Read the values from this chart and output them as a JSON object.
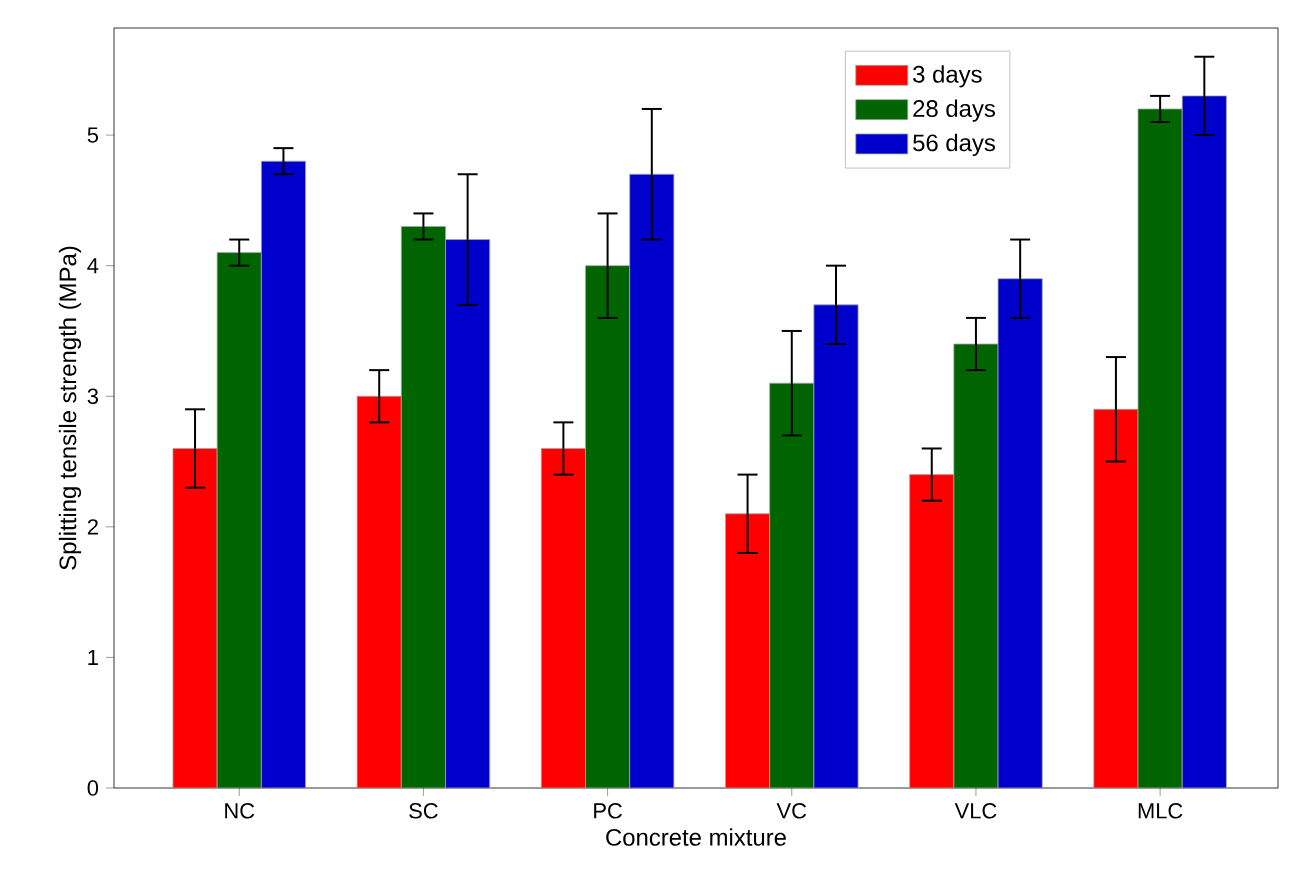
{
  "chart_data": {
    "type": "bar",
    "xlabel": "Concrete mixture",
    "ylabel": "Splitting tensile strength (MPa)",
    "categories": [
      "NC",
      "SC",
      "PC",
      "VC",
      "VLC",
      "MLC"
    ],
    "series": [
      {
        "name": "3 days",
        "color": "#ff0000",
        "values": [
          2.6,
          3.0,
          2.6,
          2.1,
          2.4,
          2.9
        ],
        "errors": [
          0.3,
          0.2,
          0.2,
          0.3,
          0.2,
          0.4
        ]
      },
      {
        "name": "28 days",
        "color": "#006400",
        "values": [
          4.1,
          4.3,
          4.0,
          3.1,
          3.4,
          5.2
        ],
        "errors": [
          0.1,
          0.1,
          0.4,
          0.4,
          0.2,
          0.1
        ]
      },
      {
        "name": "56 days",
        "color": "#0000cd",
        "values": [
          4.8,
          4.2,
          4.7,
          3.7,
          3.9,
          5.3
        ],
        "errors": [
          0.1,
          0.5,
          0.5,
          0.3,
          0.3,
          0.3
        ]
      }
    ],
    "ylim": [
      0,
      5.82
    ],
    "yticks": [
      0,
      1,
      2,
      3,
      4,
      5
    ],
    "legend": "top right",
    "grid": false
  }
}
